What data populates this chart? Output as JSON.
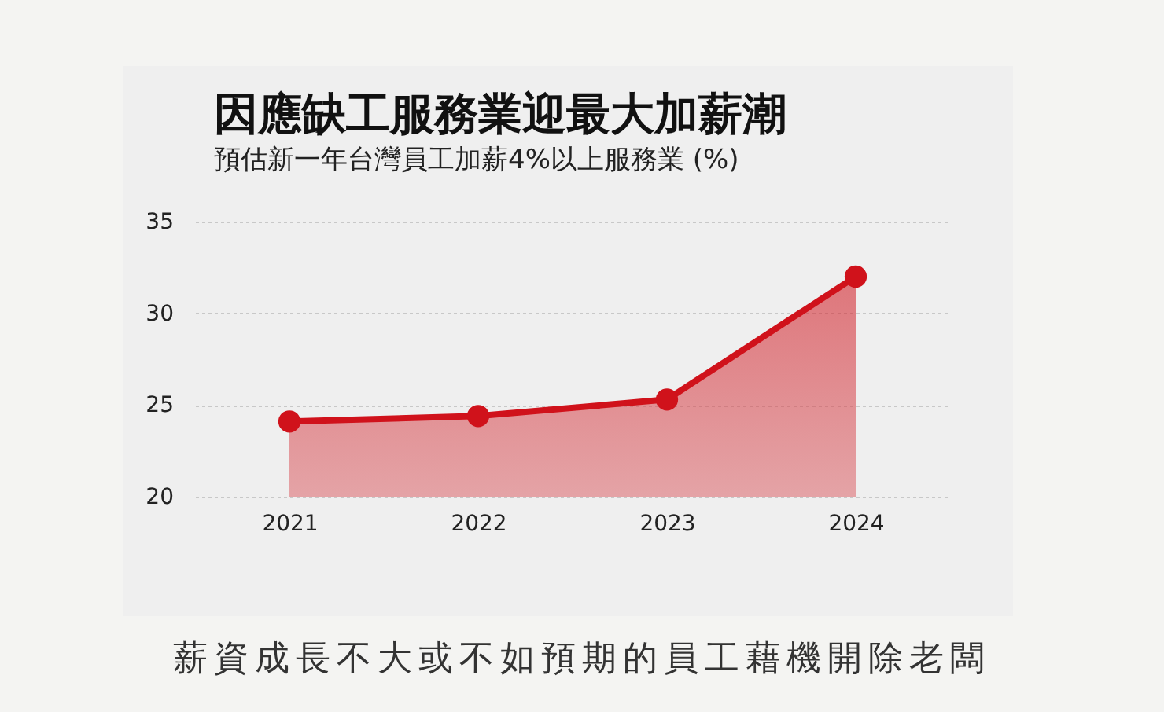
{
  "chart_data": {
    "type": "area",
    "title": "因應缺工服務業迎最大加薪潮",
    "subtitle": "預估新一年台灣員工加薪4%以上服務業 (%)",
    "categories": [
      "2021",
      "2022",
      "2023",
      "2024"
    ],
    "series": [
      {
        "color": "#d0121b",
        "values": [
          24.1,
          24.4,
          25.3,
          32
        ]
      }
    ],
    "ylim": [
      20,
      35
    ],
    "yticks": [
      20,
      25,
      30,
      35
    ],
    "grid": "y",
    "marker": "circle",
    "annotations": [
      "薪資成長不大或不如預期的員工藉機開除老闆"
    ]
  }
}
